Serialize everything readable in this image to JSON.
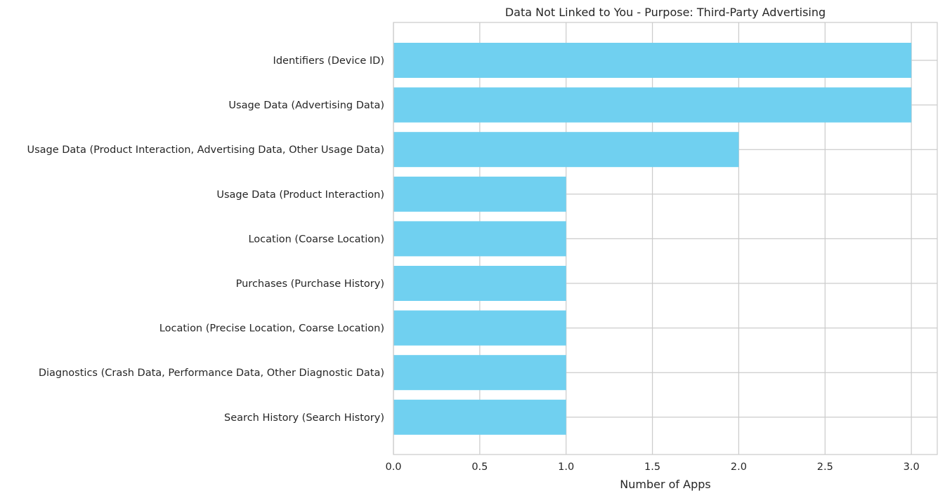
{
  "chart_data": {
    "type": "bar",
    "orientation": "horizontal",
    "title": "Data Not Linked to You - Purpose: Third-Party Advertising",
    "xlabel": "Number of Apps",
    "ylabel": "",
    "xlim": [
      0,
      3.15
    ],
    "xticks": [
      0.0,
      0.5,
      1.0,
      1.5,
      2.0,
      2.5,
      3.0
    ],
    "xtick_labels": [
      "0.0",
      "0.5",
      "1.0",
      "1.5",
      "2.0",
      "2.5",
      "3.0"
    ],
    "grid": true,
    "bar_color": "#70d0f0",
    "categories": [
      "Identifiers (Device ID)",
      "Usage Data (Advertising Data)",
      "Usage Data (Product Interaction, Advertising Data, Other Usage Data)",
      "Usage Data (Product Interaction)",
      "Location (Coarse Location)",
      "Purchases (Purchase History)",
      "Location (Precise Location, Coarse Location)",
      "Diagnostics (Crash Data, Performance Data, Other Diagnostic Data)",
      "Search History (Search History)"
    ],
    "values": [
      3,
      3,
      2,
      1,
      1,
      1,
      1,
      1,
      1
    ]
  }
}
